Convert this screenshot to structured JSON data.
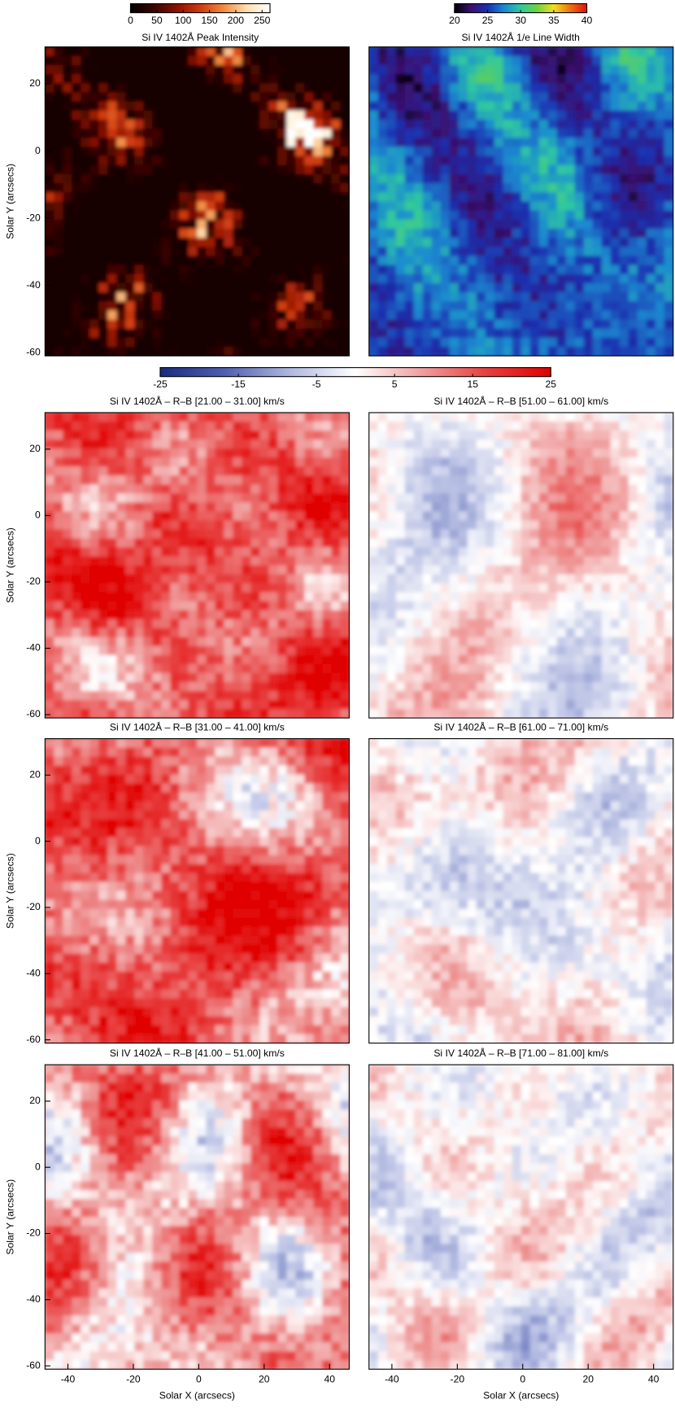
{
  "chart_data": [
    {
      "type": "heatmap",
      "ylabel": "Solar Y (arcsecs)",
      "xlim": [
        -47,
        46
      ],
      "ylim": [
        -61,
        31
      ],
      "yticks": [
        -60,
        -40,
        -20,
        0,
        20
      ],
      "colorbar": {
        "title": "Si IV 1402Å Peak Intensity",
        "lim": [
          0,
          265
        ],
        "ticks": [
          0,
          50,
          100,
          150,
          200,
          250
        ],
        "colors": [
          "#000000",
          "#3a0500",
          "#8a1200",
          "#d03a10",
          "#f08a40",
          "#ffe0b0",
          "#ffffff"
        ]
      }
    },
    {
      "type": "heatmap",
      "xlim": [
        -47,
        46
      ],
      "ylim": [
        -61,
        31
      ],
      "colorbar": {
        "title": "Si IV 1402Å 1/e Line Width",
        "lim": [
          20,
          40
        ],
        "ticks": [
          20,
          25,
          30,
          35,
          40
        ],
        "colors": [
          "#000000",
          "#3a1070",
          "#1a30b0",
          "#1a8ad0",
          "#30c8a0",
          "#70d040",
          "#f0e020",
          "#f07010",
          "#e01010"
        ]
      }
    },
    {
      "type": "heatmap",
      "title": "Si IV 1402Å – R–B [21.00 – 31.00] km/s",
      "ylabel": "Solar Y (arcsecs)",
      "xlim": [
        -47,
        46
      ],
      "ylim": [
        -61,
        31
      ],
      "yticks": [
        -60,
        -40,
        -20,
        0,
        20
      ]
    },
    {
      "type": "heatmap",
      "title": "Si IV 1402Å – R–B [51.00 – 61.00] km/s",
      "xlim": [
        -47,
        46
      ],
      "ylim": [
        -61,
        31
      ]
    },
    {
      "type": "heatmap",
      "title": "Si IV 1402Å – R–B [31.00 – 41.00] km/s",
      "ylabel": "Solar Y (arcsecs)",
      "xlim": [
        -47,
        46
      ],
      "ylim": [
        -61,
        31
      ],
      "yticks": [
        -60,
        -40,
        -20,
        0,
        20
      ]
    },
    {
      "type": "heatmap",
      "title": "Si IV 1402Å – R–B [61.00 – 71.00] km/s",
      "xlim": [
        -47,
        46
      ],
      "ylim": [
        -61,
        31
      ]
    },
    {
      "type": "heatmap",
      "title": "Si IV 1402Å – R–B [41.00 – 51.00] km/s",
      "xlabel": "Solar X (arcsecs)",
      "ylabel": "Solar Y (arcsecs)",
      "xlim": [
        -47,
        46
      ],
      "ylim": [
        -61,
        31
      ],
      "xticks": [
        -40,
        -20,
        0,
        20,
        40
      ],
      "yticks": [
        -60,
        -40,
        -20,
        0,
        20
      ]
    },
    {
      "type": "heatmap",
      "title": "Si IV 1402Å – R–B [71.00 – 81.00] km/s",
      "xlabel": "Solar X (arcsecs)",
      "xlim": [
        -47,
        46
      ],
      "ylim": [
        -61,
        31
      ],
      "xticks": [
        -40,
        -20,
        0,
        20,
        40
      ]
    }
  ],
  "velocity_colorbar": {
    "lim": [
      -25,
      25
    ],
    "ticks": [
      -25,
      -15,
      -5,
      5,
      15,
      25
    ],
    "colors": [
      "#1a2a80",
      "#5060b0",
      "#b0b8e0",
      "#ffffff",
      "#f0a0a0",
      "#e84040",
      "#e00000"
    ]
  }
}
